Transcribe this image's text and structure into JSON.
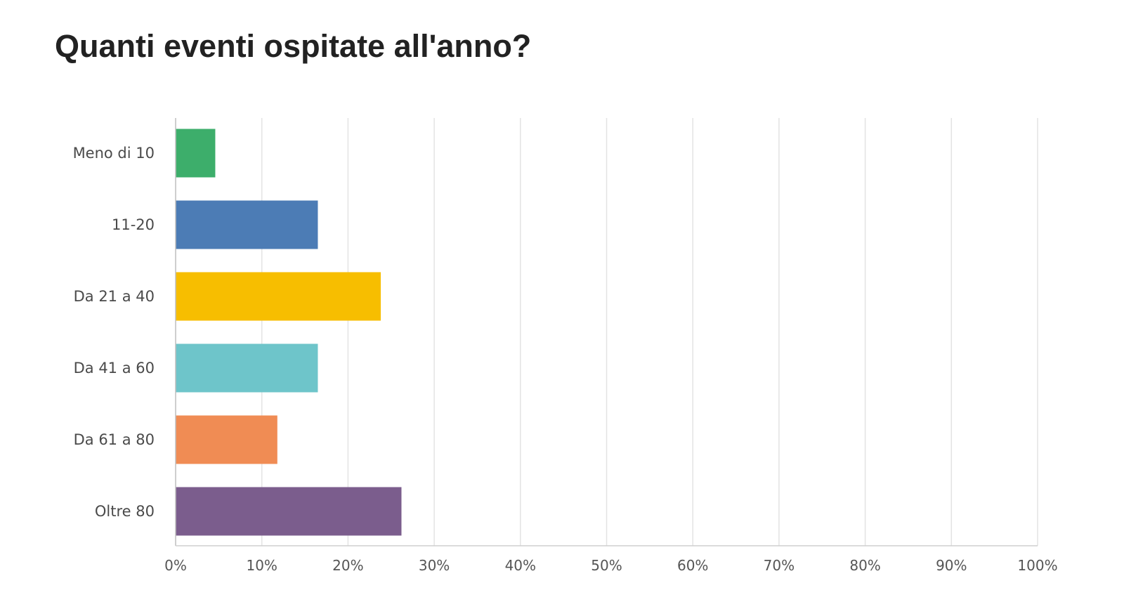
{
  "chart_data": {
    "type": "bar",
    "orientation": "horizontal",
    "title": "Quanti eventi ospitate all'anno?",
    "categories": [
      "Meno di 10",
      "11-20",
      "Da 21 a 40",
      "Da 41 a 60",
      "Da 61 a 80",
      "Oltre 80"
    ],
    "values": [
      4.6,
      16.5,
      23.8,
      16.5,
      11.8,
      26.2
    ],
    "colors": [
      "#3dae6b",
      "#4c7cb5",
      "#f7be00",
      "#6ec5ca",
      "#f08c54",
      "#7b5d8d"
    ],
    "xlim": [
      0,
      100
    ],
    "x_ticks": [
      0,
      10,
      20,
      30,
      40,
      50,
      60,
      70,
      80,
      90,
      100
    ],
    "x_tick_labels": [
      "0%",
      "10%",
      "20%",
      "30%",
      "40%",
      "50%",
      "60%",
      "70%",
      "80%",
      "90%",
      "100%"
    ],
    "grid": true,
    "legend": "none"
  }
}
